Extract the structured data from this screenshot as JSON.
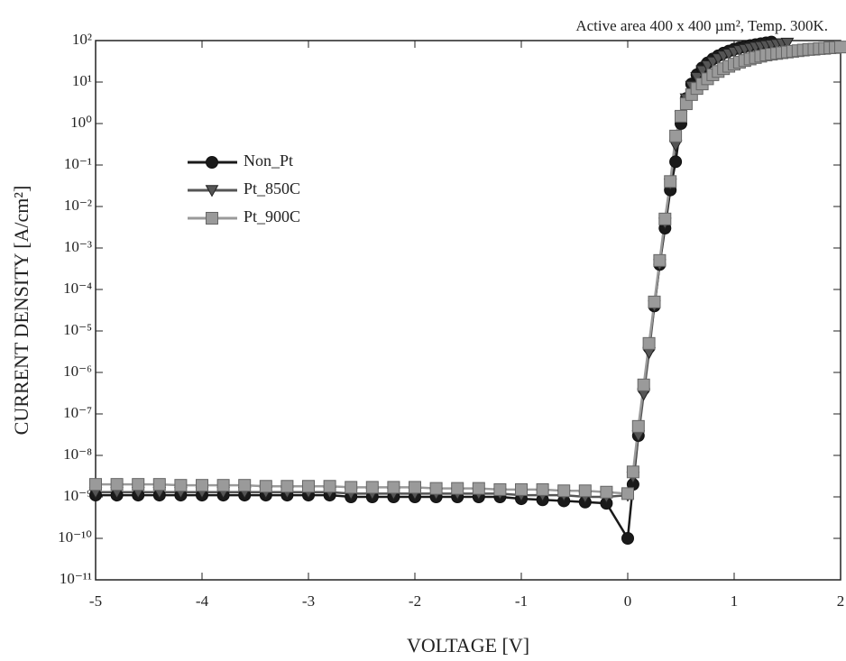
{
  "chart_data": {
    "type": "line",
    "annotation": "Active area  400 x 400 µm², Temp. 300K.",
    "xlabel": "VOLTAGE [V]",
    "ylabel": "CURRENT DENSITY [A/cm²]",
    "log_y": true,
    "legend": "upper-left",
    "xlim": [
      -5,
      2
    ],
    "xticks": [
      -5,
      -4,
      -3,
      -2,
      -1,
      0,
      1,
      2
    ],
    "ylim": [
      1e-11,
      100
    ],
    "yticks": [
      {
        "value": 100,
        "label": "10²"
      },
      {
        "value": 10,
        "label": "10¹"
      },
      {
        "value": 1,
        "label": "10⁰"
      },
      {
        "value": 0.1,
        "label": "10⁻¹"
      },
      {
        "value": 0.01,
        "label": "10⁻²"
      },
      {
        "value": 0.001,
        "label": "10⁻³"
      },
      {
        "value": 0.0001,
        "label": "10⁻⁴"
      },
      {
        "value": 1e-05,
        "label": "10⁻⁵"
      },
      {
        "value": 1e-06,
        "label": "10⁻⁶"
      },
      {
        "value": 1e-07,
        "label": "10⁻⁷"
      },
      {
        "value": 1e-08,
        "label": "10⁻⁸"
      },
      {
        "value": 1e-09,
        "label": "10⁻⁹"
      },
      {
        "value": 1e-10,
        "label": "10⁻¹⁰"
      },
      {
        "value": 1e-11,
        "label": "10⁻¹¹"
      }
    ],
    "x": [
      -5,
      -4.8,
      -4.6,
      -4.4,
      -4.2,
      -4,
      -3.8,
      -3.6,
      -3.4,
      -3.2,
      -3,
      -2.8,
      -2.6,
      -2.4,
      -2.2,
      -2,
      -1.8,
      -1.6,
      -1.4,
      -1.2,
      -1,
      -0.8,
      -0.6,
      -0.4,
      -0.2,
      0,
      0.05,
      0.1,
      0.15,
      0.2,
      0.25,
      0.3,
      0.35,
      0.4,
      0.45,
      0.5,
      0.55,
      0.6,
      0.65,
      0.7,
      0.75,
      0.8,
      0.85,
      0.9,
      0.95,
      1,
      1.05,
      1.1,
      1.15,
      1.2,
      1.25,
      1.3,
      1.35,
      1.4,
      1.45,
      1.5,
      1.55,
      1.6,
      1.65,
      1.7,
      1.75,
      1.8,
      1.85,
      1.9,
      1.95,
      2
    ],
    "series": [
      {
        "name": "Non_Pt",
        "color": "#1a1a1a",
        "marker": "circle",
        "values": [
          1.1e-09,
          1.1e-09,
          1.1e-09,
          1.1e-09,
          1.1e-09,
          1.1e-09,
          1.1e-09,
          1.1e-09,
          1.1e-09,
          1.1e-09,
          1.1e-09,
          1.1e-09,
          1e-09,
          1e-09,
          1e-09,
          1e-09,
          1e-09,
          1e-09,
          1e-09,
          1e-09,
          9e-10,
          8.5e-10,
          8e-10,
          7.5e-10,
          7e-10,
          1e-10,
          2e-09,
          3e-08,
          4e-07,
          4e-06,
          4e-05,
          0.0004,
          0.003,
          0.025,
          0.12,
          1,
          4,
          9,
          15,
          22,
          29,
          36,
          43,
          50,
          56,
          62,
          67,
          72,
          76,
          80,
          84,
          88,
          92,
          null,
          null,
          null,
          null,
          null,
          null,
          null,
          null,
          null,
          null,
          null,
          null,
          null
        ]
      },
      {
        "name": "Pt_850C",
        "color": "#555555",
        "marker": "triangle",
        "values": [
          1.3e-09,
          1.3e-09,
          1.3e-09,
          1.3e-09,
          1.3e-09,
          1.3e-09,
          1.3e-09,
          1.3e-09,
          1.3e-09,
          1.3e-09,
          1.3e-09,
          1.3e-09,
          1.2e-09,
          1.2e-09,
          1.2e-09,
          1.2e-09,
          1.2e-09,
          1.2e-09,
          1.2e-09,
          1.2e-09,
          1.1e-09,
          1.1e-09,
          1.1e-09,
          1e-09,
          1e-09,
          1.1e-09,
          3e-09,
          3e-08,
          3e-07,
          3e-06,
          4e-05,
          0.0004,
          0.004,
          0.035,
          0.3,
          1.5,
          4,
          8,
          13,
          19,
          25,
          31,
          37,
          43,
          48,
          53,
          58,
          62,
          66,
          70,
          73,
          76,
          79,
          82,
          85,
          88,
          null,
          null,
          null,
          null,
          null,
          null,
          null,
          null,
          null,
          null
        ]
      },
      {
        "name": "Pt_900C",
        "color": "#9a9a9a",
        "marker": "square",
        "values": [
          2e-09,
          2e-09,
          2e-09,
          2e-09,
          1.9e-09,
          1.9e-09,
          1.9e-09,
          1.9e-09,
          1.8e-09,
          1.8e-09,
          1.8e-09,
          1.8e-09,
          1.7e-09,
          1.7e-09,
          1.7e-09,
          1.7e-09,
          1.6e-09,
          1.6e-09,
          1.6e-09,
          1.5e-09,
          1.5e-09,
          1.5e-09,
          1.4e-09,
          1.4e-09,
          1.3e-09,
          1.2e-09,
          4e-09,
          5e-08,
          5e-07,
          5e-06,
          5e-05,
          0.0005,
          0.005,
          0.04,
          0.5,
          1.5,
          3,
          5,
          7,
          9,
          12,
          15,
          18,
          21,
          24,
          27,
          30,
          33,
          36,
          39,
          42,
          45,
          47,
          49,
          51,
          53,
          55,
          57,
          59,
          61,
          62,
          64,
          65,
          67,
          68,
          70
        ]
      }
    ]
  }
}
